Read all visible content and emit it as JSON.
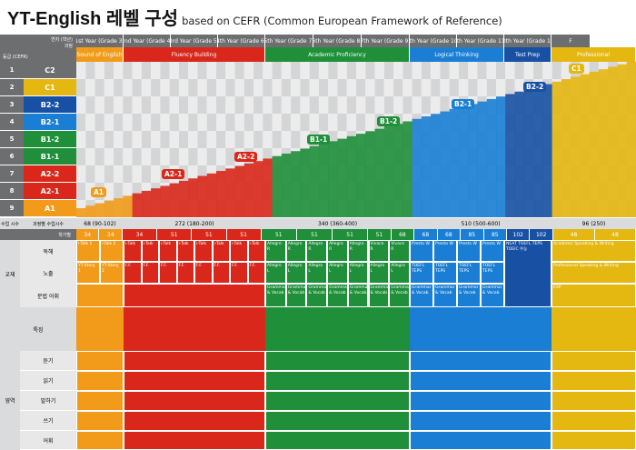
{
  "title": {
    "main": "YT-English 레벨 구성",
    "sub": "based on CEFR (Common European Framework of Reference)"
  },
  "header": {
    "corner_top": "연차 (학년)",
    "corner_top2": "과정",
    "corner_bottom": "등급 (CEFR)",
    "years": [
      "1st Year (Grade 3)",
      "2nd Year (Grade 4)",
      "3rd Year (Grade 5)",
      "4th Year (Grade 6)",
      "5th Year (Grade 7)",
      "6th Year (Grade 8)",
      "7th Year (Grade 9)",
      "8th Year (Grade 10)",
      "9th Year (Grade 11)",
      "10th Year (Grade 12)",
      "F"
    ],
    "courses": [
      "Sound of English",
      "Fluency Building",
      "Academic Proficiency",
      "Logical Thinking",
      "Test Prep",
      "Professional"
    ]
  },
  "levels": [
    {
      "num": "1",
      "code": "C2"
    },
    {
      "num": "2",
      "code": "C1"
    },
    {
      "num": "3",
      "code": "B2-2"
    },
    {
      "num": "4",
      "code": "B2-1"
    },
    {
      "num": "5",
      "code": "B1-2"
    },
    {
      "num": "6",
      "code": "B1-1"
    },
    {
      "num": "7",
      "code": "A2-2"
    },
    {
      "num": "8",
      "code": "A2-1"
    },
    {
      "num": "9",
      "code": "A1"
    }
  ],
  "badges": [
    "A1",
    "A2-1",
    "A2-2",
    "B1-1",
    "B1-2",
    "B2-1",
    "B2-2",
    "C1"
  ],
  "hours": {
    "label1": "수업 시수",
    "label2": "과정별 수업시수",
    "label3": "학기별",
    "totals": [
      "68 (90-102)",
      "272 (180-200)",
      "340 (360-400)",
      "510 (500-600)",
      "96 (250)"
    ],
    "per_term": [
      "34",
      "34",
      "34",
      "51",
      "51",
      "51",
      "51",
      "51",
      "51",
      "51",
      "68",
      "68",
      "68",
      "85",
      "85",
      "102",
      "102",
      "48",
      "48"
    ]
  },
  "rows": {
    "label_section": "교재",
    "reading": "독해",
    "listening": "노출",
    "grammar": "문법 어휘",
    "features": "특징",
    "skills_section": "영역",
    "listen": "듣기",
    "read": "읽기",
    "speak": "말하기",
    "write": "쓰기",
    "vocab": "어휘"
  },
  "books": {
    "sound": [
      "i-Talk 1",
      "i-Talk 2"
    ],
    "story": [
      "YT-Story 1",
      "YT-Story 2"
    ],
    "fluency": [
      "i-Talk",
      "i-Talk",
      "i-Talk",
      "i-Talk",
      "i-Talk",
      "i-Talk",
      "i-Talk",
      "i-Talk"
    ],
    "academic": [
      "Allegro R",
      "Allegro R",
      "Allegro R",
      "Allegro R",
      "Allegro R",
      "Vivace R",
      "Vivace R"
    ],
    "academic2": [
      "Allegro L",
      "Allegro L",
      "Allegro L",
      "Allegro L",
      "Allegro L",
      "Allegro L",
      "Allegro L"
    ],
    "grammar": "Grammar & Vocab",
    "logical": [
      "Presto W",
      "Presto W",
      "Presto W",
      "Presto W"
    ],
    "logical2": [
      "TOEFL TEPS",
      "TOEFL TEPS",
      "TOEFL TEPS",
      "TOEFL TEPS"
    ],
    "test": [
      "NEAT",
      "TOEFL",
      "TEPS",
      "TOEIC",
      "수능"
    ],
    "prof": [
      "Academic Speaking & Writing",
      "Professional Speaking & Writing",
      "ESP"
    ]
  },
  "colors": {
    "gray": "#6d6e70",
    "sound": "#f29b1b",
    "fluency": "#d9281b",
    "academic": "#1f8f3a",
    "logical": "#1a7fd4",
    "test": "#1851a4",
    "prof": "#e5b711",
    "lightgray": "#dadbdc"
  }
}
